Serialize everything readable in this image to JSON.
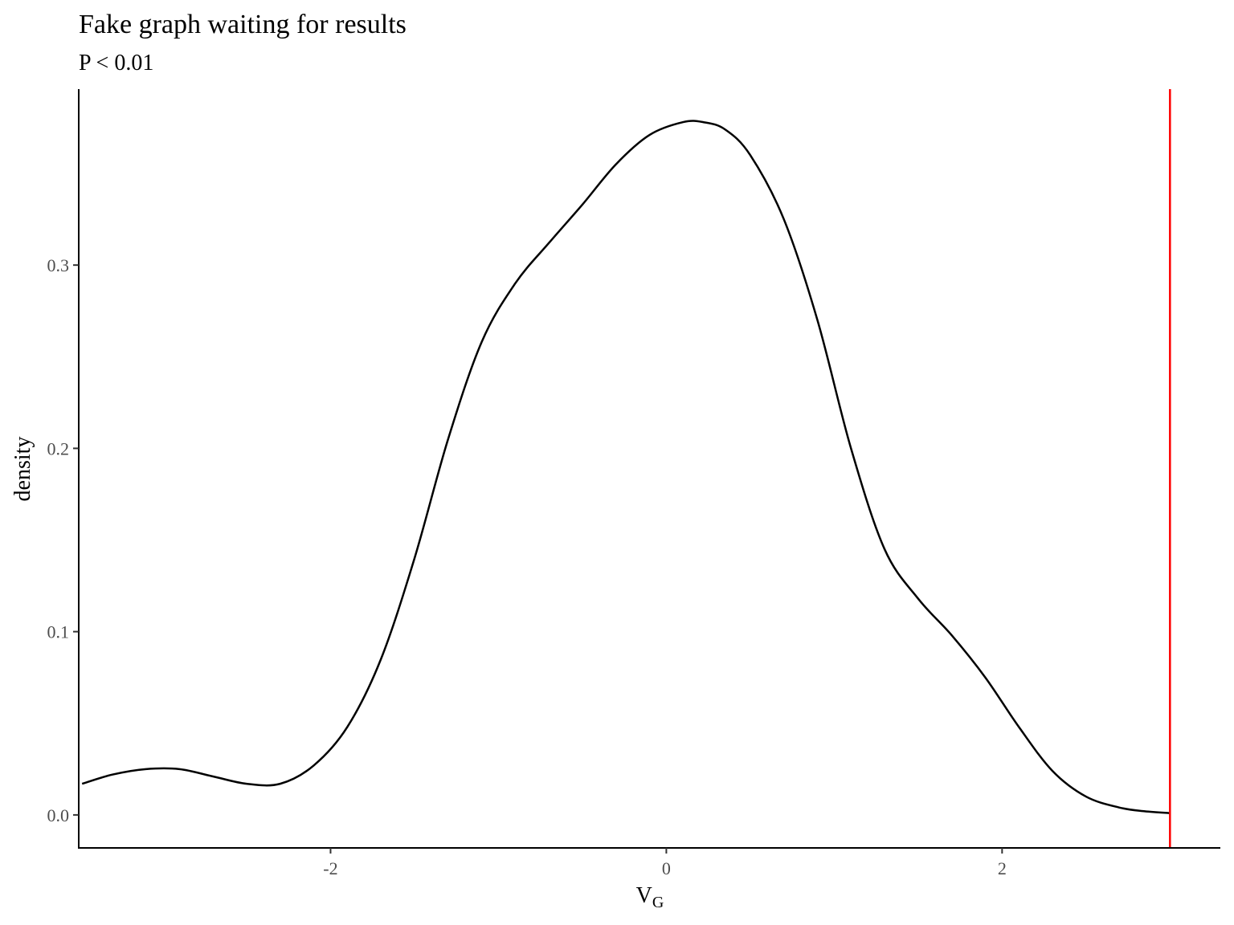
{
  "chart_data": {
    "type": "line",
    "title": "Fake graph waiting for results",
    "subtitle": "P < 0.01",
    "xlabel": {
      "main": "V",
      "subscript": "G"
    },
    "ylabel": "density",
    "xlim": [
      -3.5,
      3.3
    ],
    "ylim": [
      -0.018,
      0.396
    ],
    "xticks": [
      {
        "value": -2,
        "label": "-2"
      },
      {
        "value": 0,
        "label": "0"
      },
      {
        "value": 2,
        "label": "2"
      }
    ],
    "yticks": [
      {
        "value": 0.0,
        "label": "0.0"
      },
      {
        "value": 0.1,
        "label": "0.1"
      },
      {
        "value": 0.2,
        "label": "0.2"
      },
      {
        "value": 0.3,
        "label": "0.3"
      }
    ],
    "grid": false,
    "series": [
      {
        "color": "#000000",
        "x": [
          -3.48,
          -3.3,
          -3.1,
          -2.9,
          -2.7,
          -2.5,
          -2.3,
          -2.1,
          -1.9,
          -1.7,
          -1.5,
          -1.3,
          -1.1,
          -0.9,
          -0.7,
          -0.5,
          -0.3,
          -0.1,
          0.1,
          0.22,
          0.35,
          0.5,
          0.7,
          0.9,
          1.1,
          1.3,
          1.5,
          1.7,
          1.9,
          2.1,
          2.3,
          2.5,
          2.7,
          2.85,
          3.0
        ],
        "y": [
          0.017,
          0.022,
          0.025,
          0.025,
          0.021,
          0.017,
          0.017,
          0.027,
          0.048,
          0.085,
          0.14,
          0.205,
          0.258,
          0.29,
          0.312,
          0.333,
          0.355,
          0.371,
          0.378,
          0.378,
          0.374,
          0.36,
          0.325,
          0.27,
          0.2,
          0.145,
          0.118,
          0.098,
          0.075,
          0.048,
          0.024,
          0.01,
          0.004,
          0.002,
          0.001
        ]
      }
    ],
    "vline": {
      "x": 3.0,
      "color": "#ff0000"
    }
  }
}
